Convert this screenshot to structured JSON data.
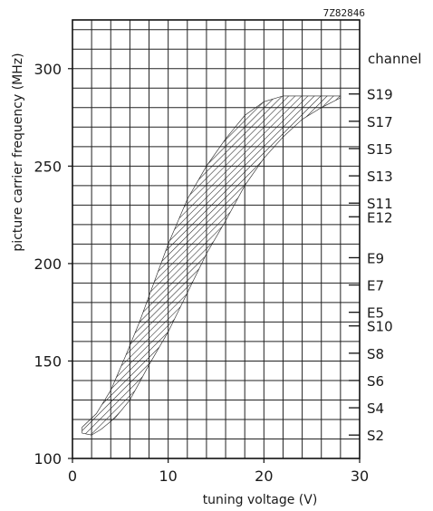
{
  "figure_code": "7Z82846",
  "chart_data": {
    "type": "area",
    "xlabel": "tuning voltage (V)",
    "ylabel": "picture carrier frequency (MHz)",
    "xlim": [
      0,
      30
    ],
    "ylim": [
      100,
      325
    ],
    "grid": true,
    "x_ticks": [
      {
        "value": 0,
        "label": "0"
      },
      {
        "value": 10,
        "label": "10"
      },
      {
        "value": 20,
        "label": "20"
      },
      {
        "value": 30,
        "label": "30"
      }
    ],
    "y_ticks": [
      {
        "value": 100,
        "label": "100"
      },
      {
        "value": 150,
        "label": "150"
      },
      {
        "value": 200,
        "label": "200"
      },
      {
        "value": 250,
        "label": "250"
      },
      {
        "value": 300,
        "label": "300"
      }
    ],
    "band": {
      "upper": [
        [
          1,
          116
        ],
        [
          2.5,
          123
        ],
        [
          4,
          135
        ],
        [
          5.5,
          152
        ],
        [
          7,
          170
        ],
        [
          8.5,
          190
        ],
        [
          10,
          210
        ],
        [
          12,
          233
        ],
        [
          14,
          250
        ],
        [
          16,
          264
        ],
        [
          18,
          276
        ],
        [
          20,
          283
        ],
        [
          22,
          286
        ],
        [
          25,
          286
        ],
        [
          28,
          286
        ]
      ],
      "lower": [
        [
          1,
          113
        ],
        [
          2,
          112
        ],
        [
          3,
          115
        ],
        [
          4.5,
          121
        ],
        [
          6,
          130
        ],
        [
          8,
          148
        ],
        [
          10,
          165
        ],
        [
          12,
          185
        ],
        [
          14,
          205
        ],
        [
          16,
          222
        ],
        [
          18,
          240
        ],
        [
          20,
          254
        ],
        [
          22,
          265
        ],
        [
          24,
          274
        ],
        [
          26,
          280
        ],
        [
          28,
          285
        ]
      ]
    },
    "channel_axis": {
      "title": "channel",
      "channels": [
        {
          "label": "S19",
          "freq": 287
        },
        {
          "label": "S17",
          "freq": 273
        },
        {
          "label": "S15",
          "freq": 259
        },
        {
          "label": "S13",
          "freq": 245
        },
        {
          "label": "S11",
          "freq": 231
        },
        {
          "label": "E12",
          "freq": 224
        },
        {
          "label": "E9",
          "freq": 203
        },
        {
          "label": "E7",
          "freq": 189
        },
        {
          "label": "E5",
          "freq": 175
        },
        {
          "label": "S10",
          "freq": 168
        },
        {
          "label": "S8",
          "freq": 154
        },
        {
          "label": "S6",
          "freq": 140
        },
        {
          "label": "S4",
          "freq": 126
        },
        {
          "label": "S2",
          "freq": 112
        }
      ]
    }
  }
}
